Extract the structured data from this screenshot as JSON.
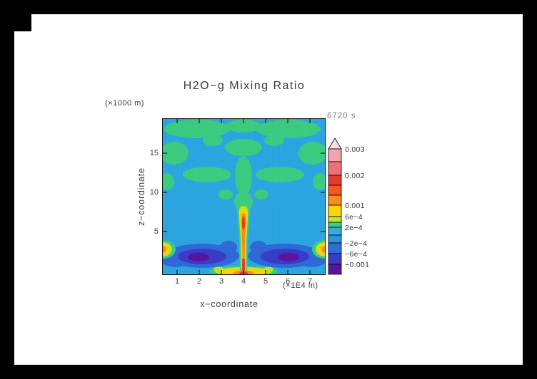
{
  "chart_data": {
    "type": "heatmap",
    "title": "H2O−g Mixing Ratio",
    "time_label": "6720 s",
    "x": {
      "label": "x−coordinate",
      "unit": "(×1E4 m)",
      "ticks": [
        1,
        2,
        3,
        4,
        5,
        6,
        7
      ],
      "range_1e4_m": [
        0,
        7.7
      ]
    },
    "y": {
      "label": "z−coordinate",
      "unit": "(×1000 m)",
      "ticks": [
        5,
        10,
        15
      ],
      "range_km": [
        0,
        19.2
      ]
    },
    "colorbar": {
      "tick_labels": [
        "0.003",
        "0.002",
        "0.001",
        "6e−4",
        "2e−4",
        "−2e−4",
        "−6e−4",
        "−0.001"
      ],
      "overflow_arrow_color": "#FADCE1",
      "band_colors_top_to_bottom": [
        "#F3A2B0",
        "#EF6F77",
        "#E8382F",
        "#F05A22",
        "#F98C1A",
        "#FFD400",
        "#BFE62A",
        "#3ECD80",
        "#34ACE4",
        "#2C93DC",
        "#2F6BD8",
        "#3B3BC8",
        "#5A14A4"
      ],
      "legend_position": "right"
    },
    "grid": "fine computational mesh visible over field",
    "field_summary": {
      "background_value_range": "−2e−4 to 2e−4 (cyan)",
      "features": [
        "Narrow vertical plume at x ≈ 4×1E4 m rising from the surface to z ≈ 8–9 km; core values 0.001 to >0.003 (yellow–orange–red), maximum near the surface",
        "Broad weakly-positive (2e−4 to 6e−4) green patches across the upper half of the domain (z ≈ 8–19 km)",
        "Negative band (−2e−4 to below −0.001; blue to violet) near the surface (z ≈ 2–5 km) flanking the plume on both sides",
        "Positive hot spots (~0.001–0.002) at the left and right domain edges near z ≈ 4 km and along the surface at the plume base"
      ]
    }
  }
}
